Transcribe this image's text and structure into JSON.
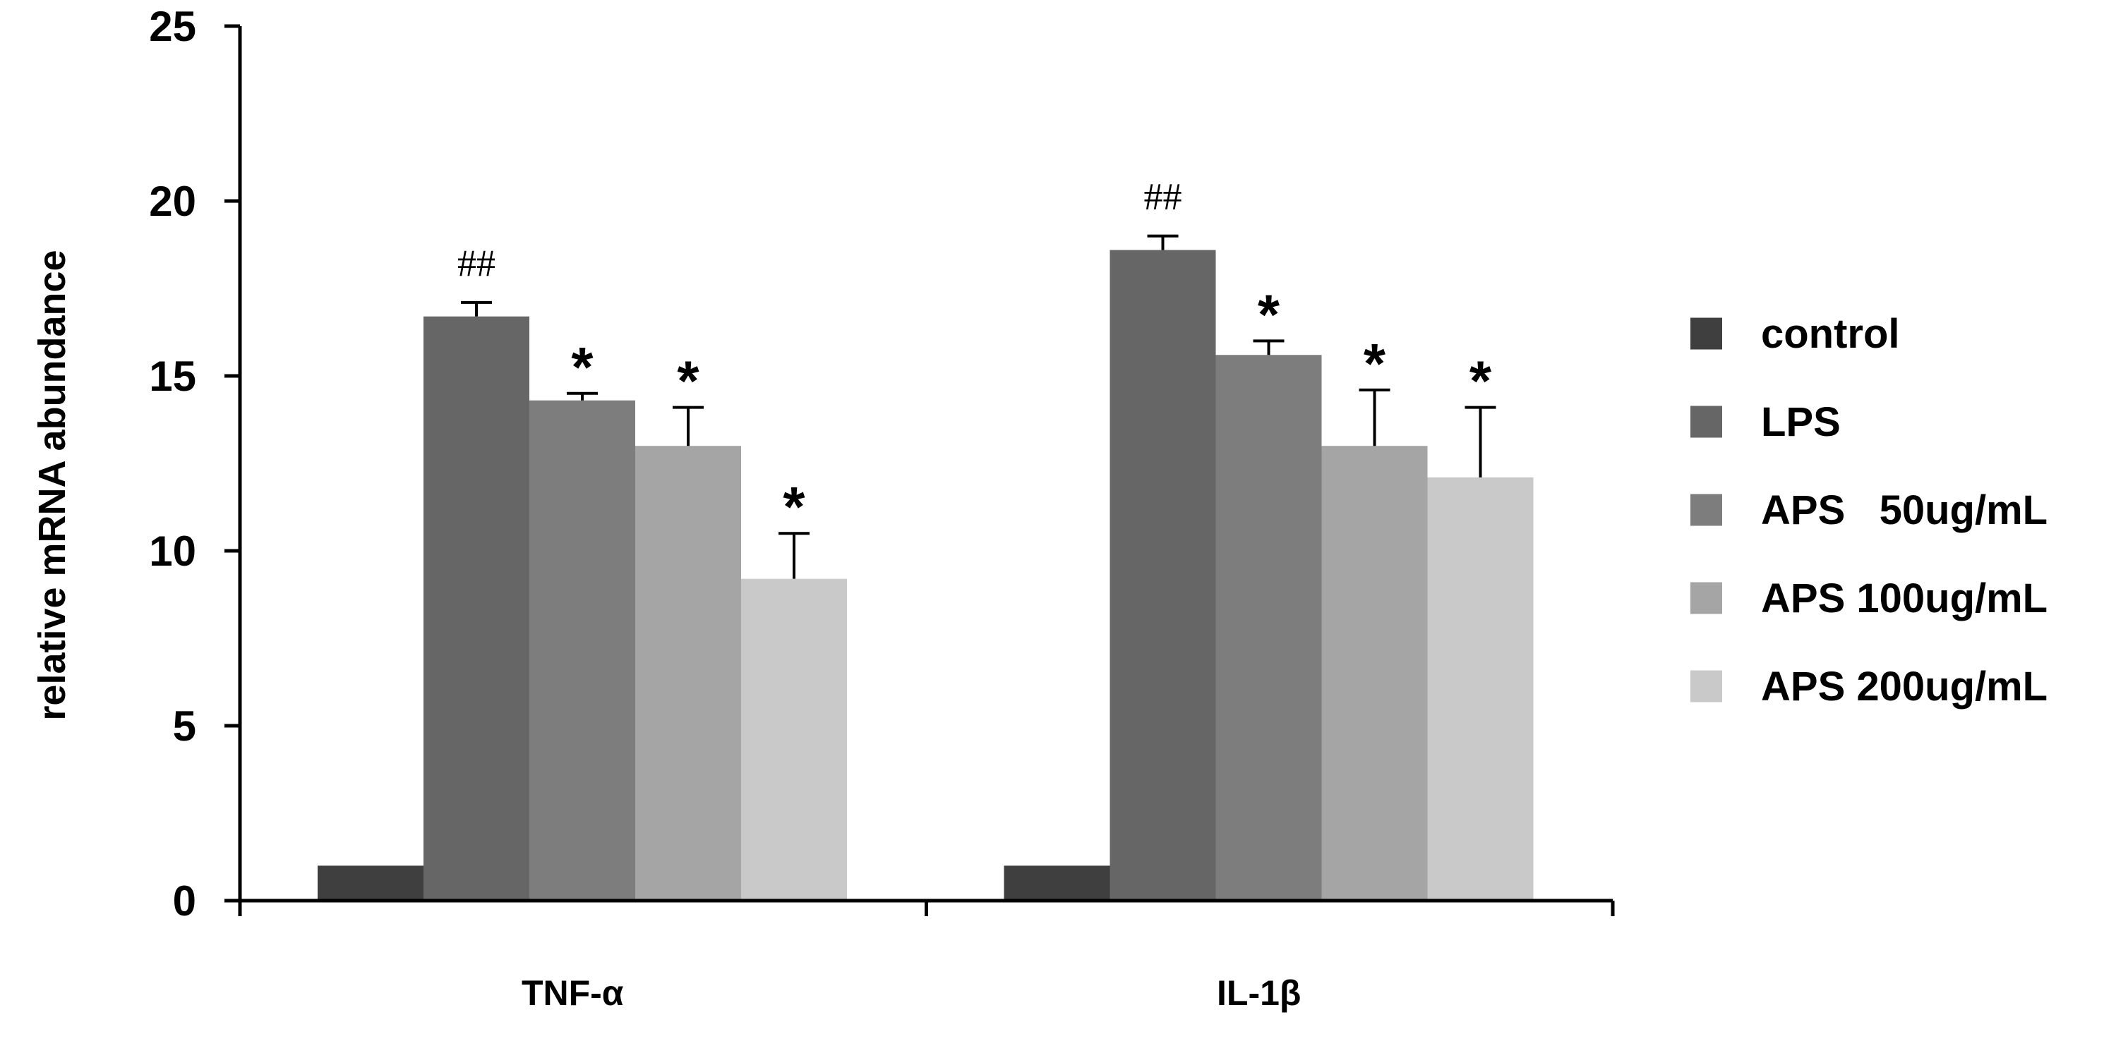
{
  "chart_data": {
    "type": "bar",
    "title": "",
    "xlabel": "",
    "ylabel": "relative mRNA abundance",
    "ylim": [
      0,
      25
    ],
    "yticks": [
      0,
      5,
      10,
      15,
      20,
      25
    ],
    "categories": [
      "TNF-α",
      "IL-1β"
    ],
    "series": [
      {
        "name": "control",
        "values": [
          1.0,
          1.0
        ],
        "errors": [
          0.0,
          0.0
        ],
        "color": "#3f3f3f",
        "marks": [
          "",
          ""
        ]
      },
      {
        "name": "LPS",
        "values": [
          16.7,
          18.6
        ],
        "errors": [
          0.4,
          0.4
        ],
        "color": "#666666",
        "marks": [
          "##",
          "##"
        ]
      },
      {
        "name": "APS   50ug/mL",
        "values": [
          14.3,
          15.6
        ],
        "errors": [
          0.2,
          0.4
        ],
        "color": "#7d7d7d",
        "marks": [
          "*",
          "*"
        ]
      },
      {
        "name": "APS 100ug/mL",
        "values": [
          13.0,
          13.0
        ],
        "errors": [
          1.1,
          1.6
        ],
        "color": "#a5a5a5",
        "marks": [
          "*",
          "*"
        ]
      },
      {
        "name": "APS 200ug/mL",
        "values": [
          9.2,
          12.1
        ],
        "errors": [
          1.3,
          2.0
        ],
        "color": "#c9c9c9",
        "marks": [
          "*",
          "*"
        ]
      }
    ],
    "grid": false,
    "legend": "right"
  }
}
